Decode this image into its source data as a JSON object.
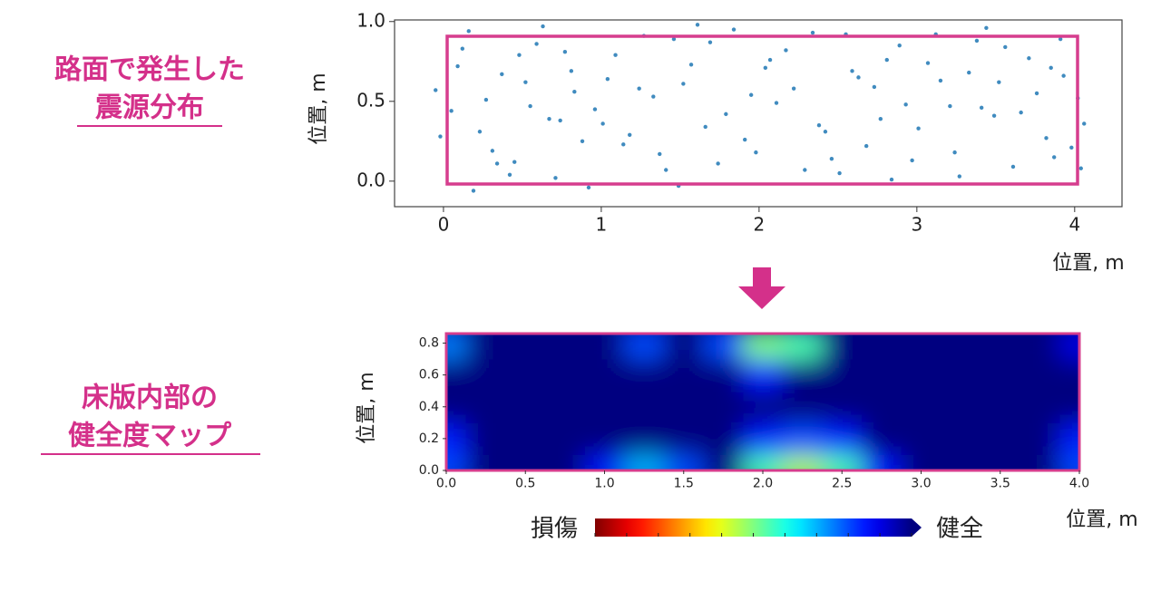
{
  "labels": {
    "scatter_title": [
      "路面で発生した",
      "震源分布"
    ],
    "map_title": [
      "床版内部の",
      "健全度マップ"
    ]
  },
  "chart_data": [
    {
      "type": "scatter",
      "x_label": "位置, m",
      "y_label": "位置, m",
      "color": "#1f77b4",
      "xlim": [
        -0.31,
        4.3
      ],
      "ylim": [
        -0.16,
        1.01
      ],
      "xticks": [
        0,
        1,
        2,
        3,
        4
      ],
      "yticks": [
        {
          "value": 0,
          "label": "0.0"
        },
        {
          "value": 0.5,
          "label": "0.5"
        },
        {
          "value": 1,
          "label": "1.0"
        }
      ],
      "x": [
        0.12,
        0.45,
        0.83,
        1.27,
        1.66,
        2.04,
        2.51,
        2.93,
        3.38,
        3.82,
        0.05,
        0.37,
        0.71,
        1.09,
        1.52,
        1.98,
        2.34,
        2.77,
        3.15,
        3.61,
        4.02,
        0.23,
        0.59,
        0.96,
        1.41,
        1.84,
        2.22,
        2.68,
        3.07,
        3.49,
        3.93,
        -0.05,
        0.31,
        0.77,
        1.18,
        1.57,
        2.11,
        2.46,
        2.89,
        3.27,
        3.71,
        4.06,
        0.16,
        0.52,
        0.88,
        1.33,
        1.74,
        2.17,
        2.59,
        3.01,
        3.44,
        3.87,
        0.09,
        0.42,
        0.67,
        1.04,
        1.46,
        1.91,
        2.29,
        2.73,
        3.21,
        3.56,
        3.98,
        0.27,
        0.63,
        1.01,
        1.37,
        1.79,
        2.07,
        2.55,
        2.97,
        3.33,
        3.76,
        -0.02,
        0.48,
        0.92,
        1.24,
        1.69,
        2.38,
        2.84,
        3.12,
        3.66,
        4.04,
        0.19,
        0.55,
        0.81,
        1.14,
        1.61,
        1.95,
        2.42,
        2.81,
        3.24,
        3.52,
        3.91,
        0.34,
        0.74,
        1.49,
        2.63,
        3.41,
        3.85
      ],
      "y": [
        0.83,
        0.12,
        0.56,
        0.91,
        0.34,
        0.71,
        0.05,
        0.48,
        0.88,
        0.27,
        0.44,
        0.67,
        0.02,
        0.79,
        0.61,
        0.18,
        0.93,
        0.39,
        0.63,
        0.09,
        0.52,
        0.31,
        0.86,
        0.45,
        0.07,
        0.95,
        0.58,
        0.22,
        0.74,
        0.41,
        0.66,
        0.57,
        0.19,
        0.81,
        0.29,
        0.73,
        0.49,
        0.14,
        0.85,
        0.03,
        0.77,
        0.36,
        0.94,
        0.62,
        0.25,
        0.53,
        0.11,
        0.82,
        0.69,
        0.33,
        0.96,
        0.15,
        0.72,
        0.04,
        0.39,
        0.64,
        0.89,
        0.26,
        0.07,
        0.59,
        0.47,
        0.84,
        0.21,
        0.51,
        0.97,
        0.36,
        0.17,
        0.42,
        0.76,
        0.92,
        0.13,
        0.68,
        0.55,
        0.28,
        0.79,
        -0.04,
        0.58,
        0.87,
        0.35,
        0.01,
        0.92,
        0.43,
        0.08,
        -0.06,
        0.47,
        0.69,
        0.23,
        0.98,
        0.54,
        0.31,
        0.76,
        0.18,
        0.62,
        0.89,
        0.11,
        0.38,
        -0.03,
        0.65,
        0.46,
        0.71
      ]
    },
    {
      "type": "heatmap",
      "x_label": "位置, m",
      "y_label": "位置, m",
      "border_color": "#d63d8e",
      "xlim": [
        0,
        4
      ],
      "ylim": [
        0,
        0.86
      ],
      "xticks": [
        {
          "value": 0,
          "label": "0.0"
        },
        {
          "value": 0.5,
          "label": "0.5"
        },
        {
          "value": 1,
          "label": "1.0"
        },
        {
          "value": 1.5,
          "label": "1.5"
        },
        {
          "value": 2,
          "label": "2.0"
        },
        {
          "value": 2.5,
          "label": "2.5"
        },
        {
          "value": 3,
          "label": "3.0"
        },
        {
          "value": 3.5,
          "label": "3.5"
        },
        {
          "value": 4,
          "label": "4.0"
        }
      ],
      "yticks": [
        {
          "value": 0,
          "label": "0.0"
        },
        {
          "value": 0.2,
          "label": "0.2"
        },
        {
          "value": 0.4,
          "label": "0.4"
        },
        {
          "value": 0.6,
          "label": "0.6"
        },
        {
          "value": 0.8,
          "label": "0.8"
        }
      ],
      "x": [
        0,
        0.25,
        0.5,
        0.75,
        1,
        1.25,
        1.5,
        1.75,
        2,
        2.25,
        2.5,
        2.75,
        3,
        3.25,
        3.5,
        3.75,
        4
      ],
      "y": [
        0,
        0.2,
        0.4,
        0.6,
        0.8
      ],
      "z": [
        [
          0.8,
          1,
          1,
          1,
          0.85,
          0.7,
          0.8,
          1,
          0.55,
          0.45,
          0.55,
          0.85,
          1,
          1,
          1,
          1,
          0.8
        ],
        [
          0.85,
          1,
          1,
          1,
          1,
          1,
          1,
          1,
          0.85,
          0.8,
          0.85,
          1,
          1,
          1,
          1,
          1,
          0.85
        ],
        [
          1,
          1,
          1,
          1,
          1,
          1,
          1,
          1,
          1,
          1,
          1,
          1,
          1,
          1,
          1,
          1,
          1
        ],
        [
          1,
          1,
          1,
          1,
          1,
          1,
          1,
          1,
          0.85,
          1,
          1,
          1,
          1,
          1,
          1,
          1,
          1
        ],
        [
          0.75,
          1,
          1,
          1,
          1,
          0.8,
          1,
          0.8,
          0.5,
          0.55,
          1,
          1,
          1,
          1,
          1,
          1,
          0.9
        ]
      ],
      "colorbar": {
        "low_label": "損傷",
        "high_label": "健全"
      }
    }
  ]
}
